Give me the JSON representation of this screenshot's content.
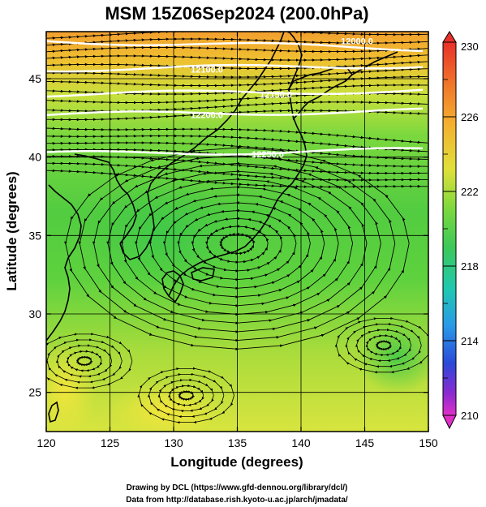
{
  "title": "MSM 15Z06Sep2024 (200.0hPa)",
  "xlabel": "Longitude (degrees)",
  "ylabel": "Latitude  (degrees)",
  "x_ticks": [
    "120",
    "125",
    "130",
    "135",
    "140",
    "145",
    "150"
  ],
  "y_ticks": [
    "25",
    "30",
    "35",
    "40",
    "45"
  ],
  "colorbar_ticks": [
    "230",
    "226",
    "222",
    "218",
    "214",
    "210"
  ],
  "contour_labels": [
    "12000.0",
    "12100.0",
    "12150.0",
    "12200.0",
    "12250.0"
  ],
  "credits": {
    "line1": "Drawing by DCL (https://www.gfd-dennou.org/library/dcl/)",
    "line2": "Data from http://database.rish.kyoto-u.ac.jp/arch/jmadata/"
  },
  "chart_data": {
    "type": "map",
    "x_range": [
      120,
      150
    ],
    "y_range": [
      22.5,
      48
    ],
    "grid": true,
    "colorbar_range": [
      210,
      230
    ],
    "colorbar_step": 4,
    "contours": [
      {
        "label": "12000.0",
        "lat": 47.4
      },
      {
        "label": "12100.0",
        "lat": 45.6
      },
      {
        "label": "12150.0",
        "lat": 44.0
      },
      {
        "label": "12200.0",
        "lat": 42.7
      },
      {
        "label": "12250.0",
        "lat": 40.2
      }
    ],
    "anticyclone_center": {
      "lon": 135,
      "lat": 34.5
    },
    "colors": {
      "north_warm": "#f0a030",
      "field_green": "#60d040",
      "south_yellow": "#d0e040",
      "streamline": "#000000",
      "contour": "#ffffff"
    }
  }
}
